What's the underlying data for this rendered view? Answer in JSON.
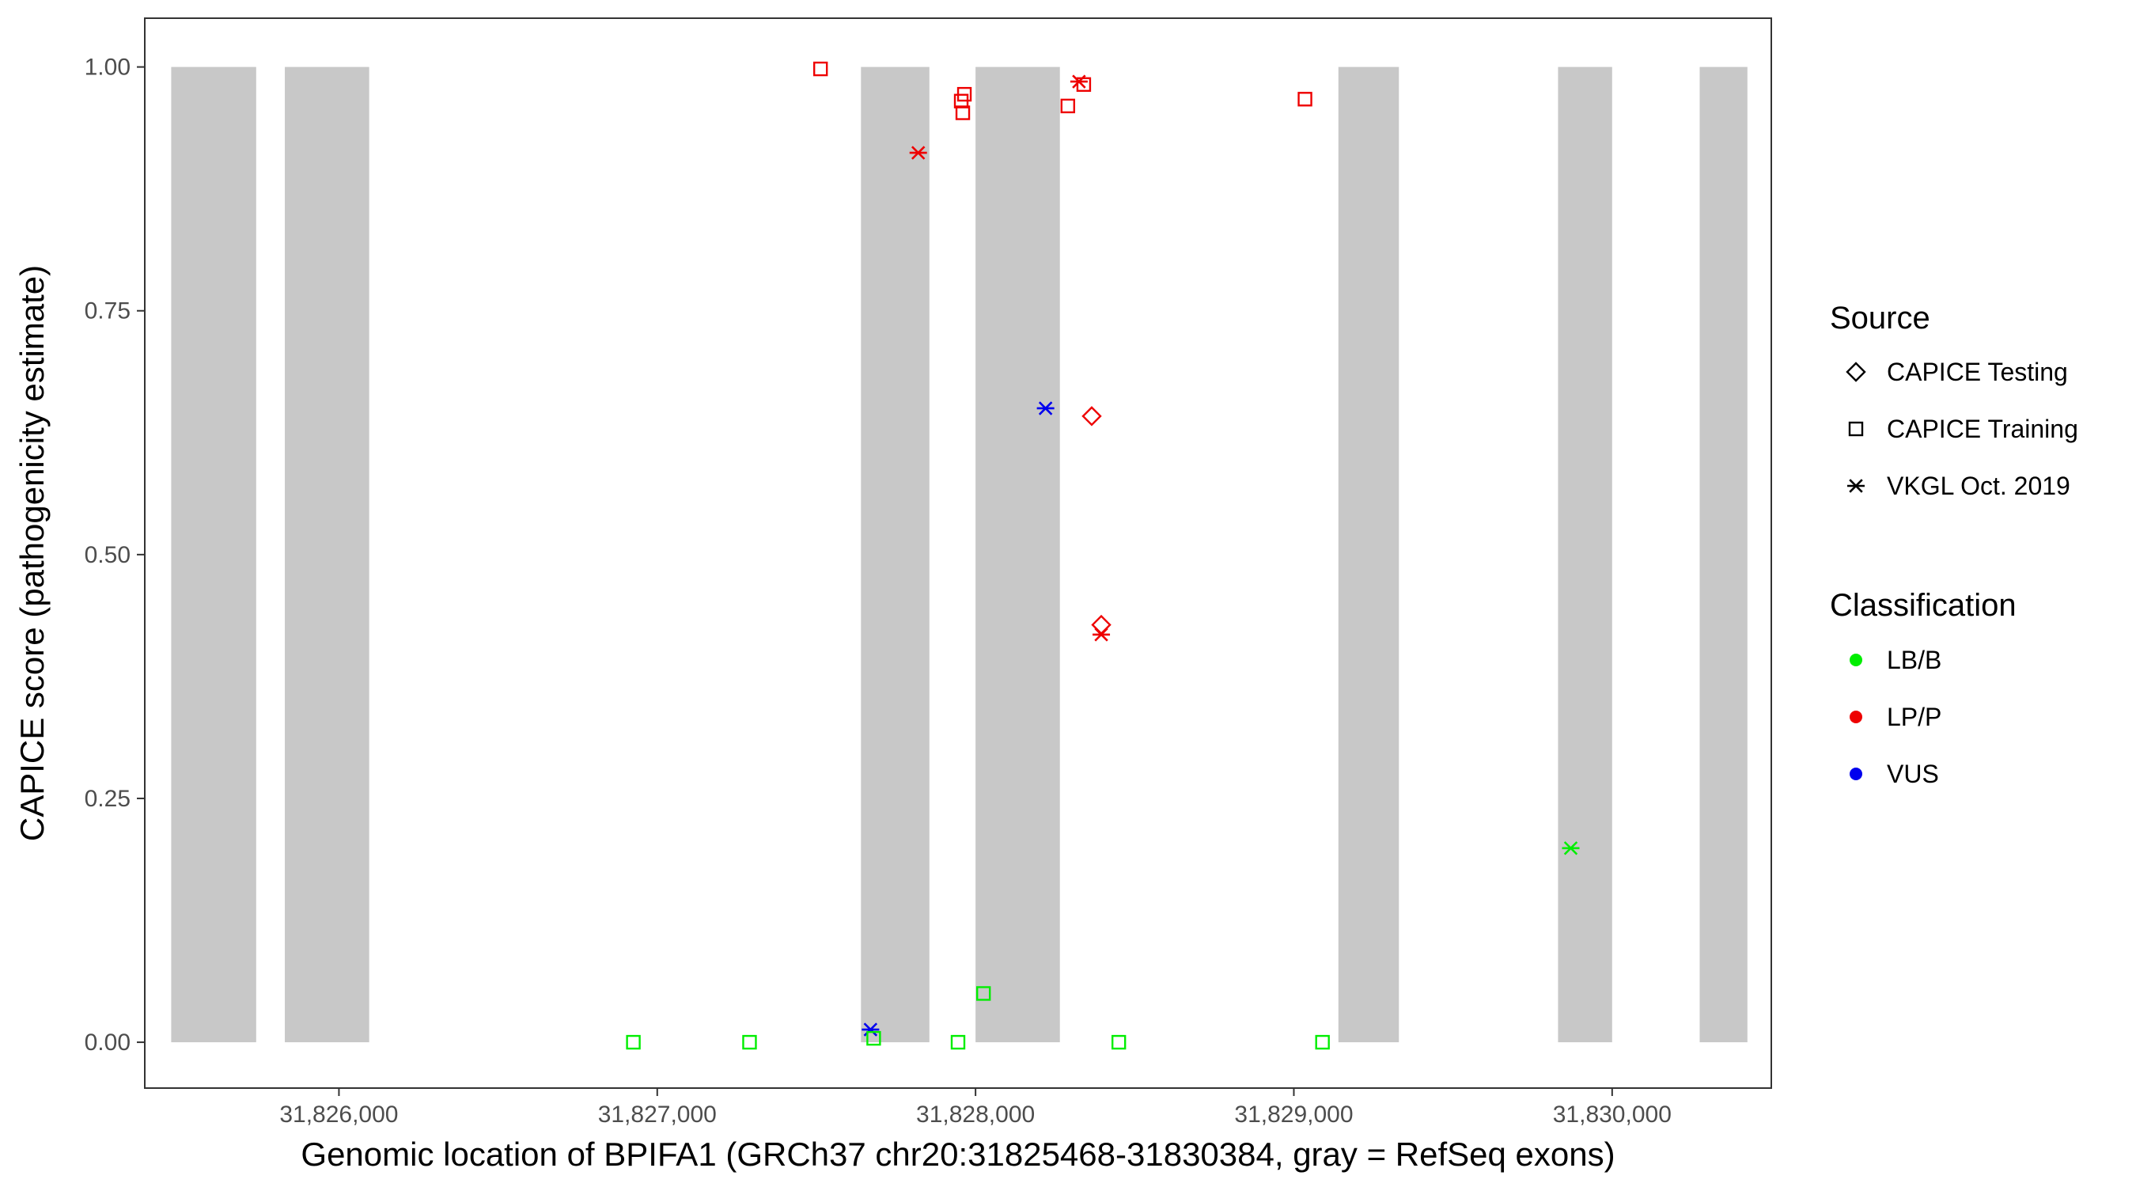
{
  "chart_data": {
    "type": "scatter",
    "title": "",
    "xlabel": "Genomic location of BPIFA1 (GRCh37 chr20:31825468-31830384, gray = RefSeq exons)",
    "ylabel": "CAPICE score (pathogenicity estimate)",
    "xlim": [
      31825390,
      31830500
    ],
    "ylim": [
      -0.047,
      1.05
    ],
    "x_ticks": [
      31826000,
      31827000,
      31828000,
      31829000,
      31830000
    ],
    "x_tick_labels": [
      "31,826,000",
      "31,827,000",
      "31,828,000",
      "31,829,000",
      "31,830,000"
    ],
    "y_ticks": [
      0,
      0.25,
      0.5,
      0.75,
      1.0
    ],
    "y_tick_labels": [
      "0.00",
      "0.25",
      "0.50",
      "0.75",
      "1.00"
    ],
    "grid": false,
    "legend_position": "right",
    "exons": [
      {
        "start": 31825473,
        "end": 31825740
      },
      {
        "start": 31825830,
        "end": 31826095
      },
      {
        "start": 31827640,
        "end": 31827855
      },
      {
        "start": 31828000,
        "end": 31828265
      },
      {
        "start": 31829140,
        "end": 31829330
      },
      {
        "start": 31829830,
        "end": 31830000
      },
      {
        "start": 31830275,
        "end": 31830425
      }
    ],
    "colors": {
      "LB/B": "#00ee00",
      "LP/P": "#ee0000",
      "VUS": "#0000ee"
    },
    "exon_color": "#c8c8c8",
    "legend": {
      "source_title": "Source",
      "source_items": [
        {
          "label": "CAPICE Testing",
          "shape": "diamond"
        },
        {
          "label": "CAPICE Training",
          "shape": "square"
        },
        {
          "label": "VKGL Oct. 2019",
          "shape": "asterisk"
        }
      ],
      "class_title": "Classification",
      "class_items": [
        {
          "label": "LB/B",
          "color": "#00ee00"
        },
        {
          "label": "LP/P",
          "color": "#ee0000"
        },
        {
          "label": "VUS",
          "color": "#0000ee"
        }
      ]
    },
    "points": [
      {
        "x": 31827513,
        "y": 0.998,
        "source": "CAPICE Training",
        "class": "LP/P"
      },
      {
        "x": 31827955,
        "y": 0.965,
        "source": "CAPICE Training",
        "class": "LP/P"
      },
      {
        "x": 31827965,
        "y": 0.972,
        "source": "CAPICE Training",
        "class": "LP/P"
      },
      {
        "x": 31827960,
        "y": 0.953,
        "source": "CAPICE Training",
        "class": "LP/P"
      },
      {
        "x": 31828290,
        "y": 0.96,
        "source": "CAPICE Training",
        "class": "LP/P"
      },
      {
        "x": 31828340,
        "y": 0.982,
        "source": "CAPICE Training",
        "class": "LP/P"
      },
      {
        "x": 31829035,
        "y": 0.967,
        "source": "CAPICE Training",
        "class": "LP/P"
      },
      {
        "x": 31828325,
        "y": 0.985,
        "source": "VKGL Oct. 2019",
        "class": "LP/P"
      },
      {
        "x": 31827820,
        "y": 0.912,
        "source": "VKGL Oct. 2019",
        "class": "LP/P"
      },
      {
        "x": 31828220,
        "y": 0.65,
        "source": "VKGL Oct. 2019",
        "class": "VUS"
      },
      {
        "x": 31828365,
        "y": 0.642,
        "source": "CAPICE Testing",
        "class": "LP/P"
      },
      {
        "x": 31828395,
        "y": 0.428,
        "source": "CAPICE Testing",
        "class": "LP/P"
      },
      {
        "x": 31828395,
        "y": 0.418,
        "source": "VKGL Oct. 2019",
        "class": "LP/P"
      },
      {
        "x": 31829870,
        "y": 0.199,
        "source": "VKGL Oct. 2019",
        "class": "LB/B"
      },
      {
        "x": 31828025,
        "y": 0.05,
        "source": "CAPICE Training",
        "class": "LB/B"
      },
      {
        "x": 31827670,
        "y": 0.013,
        "source": "VKGL Oct. 2019",
        "class": "VUS"
      },
      {
        "x": 31826925,
        "y": 0.0,
        "source": "CAPICE Training",
        "class": "LB/B"
      },
      {
        "x": 31827290,
        "y": 0.0,
        "source": "CAPICE Training",
        "class": "LB/B"
      },
      {
        "x": 31827680,
        "y": 0.004,
        "source": "CAPICE Training",
        "class": "LB/B"
      },
      {
        "x": 31827945,
        "y": 0.0,
        "source": "CAPICE Training",
        "class": "LB/B"
      },
      {
        "x": 31828450,
        "y": 0.0,
        "source": "CAPICE Training",
        "class": "LB/B"
      },
      {
        "x": 31829090,
        "y": 0.0,
        "source": "CAPICE Training",
        "class": "LB/B"
      }
    ]
  }
}
